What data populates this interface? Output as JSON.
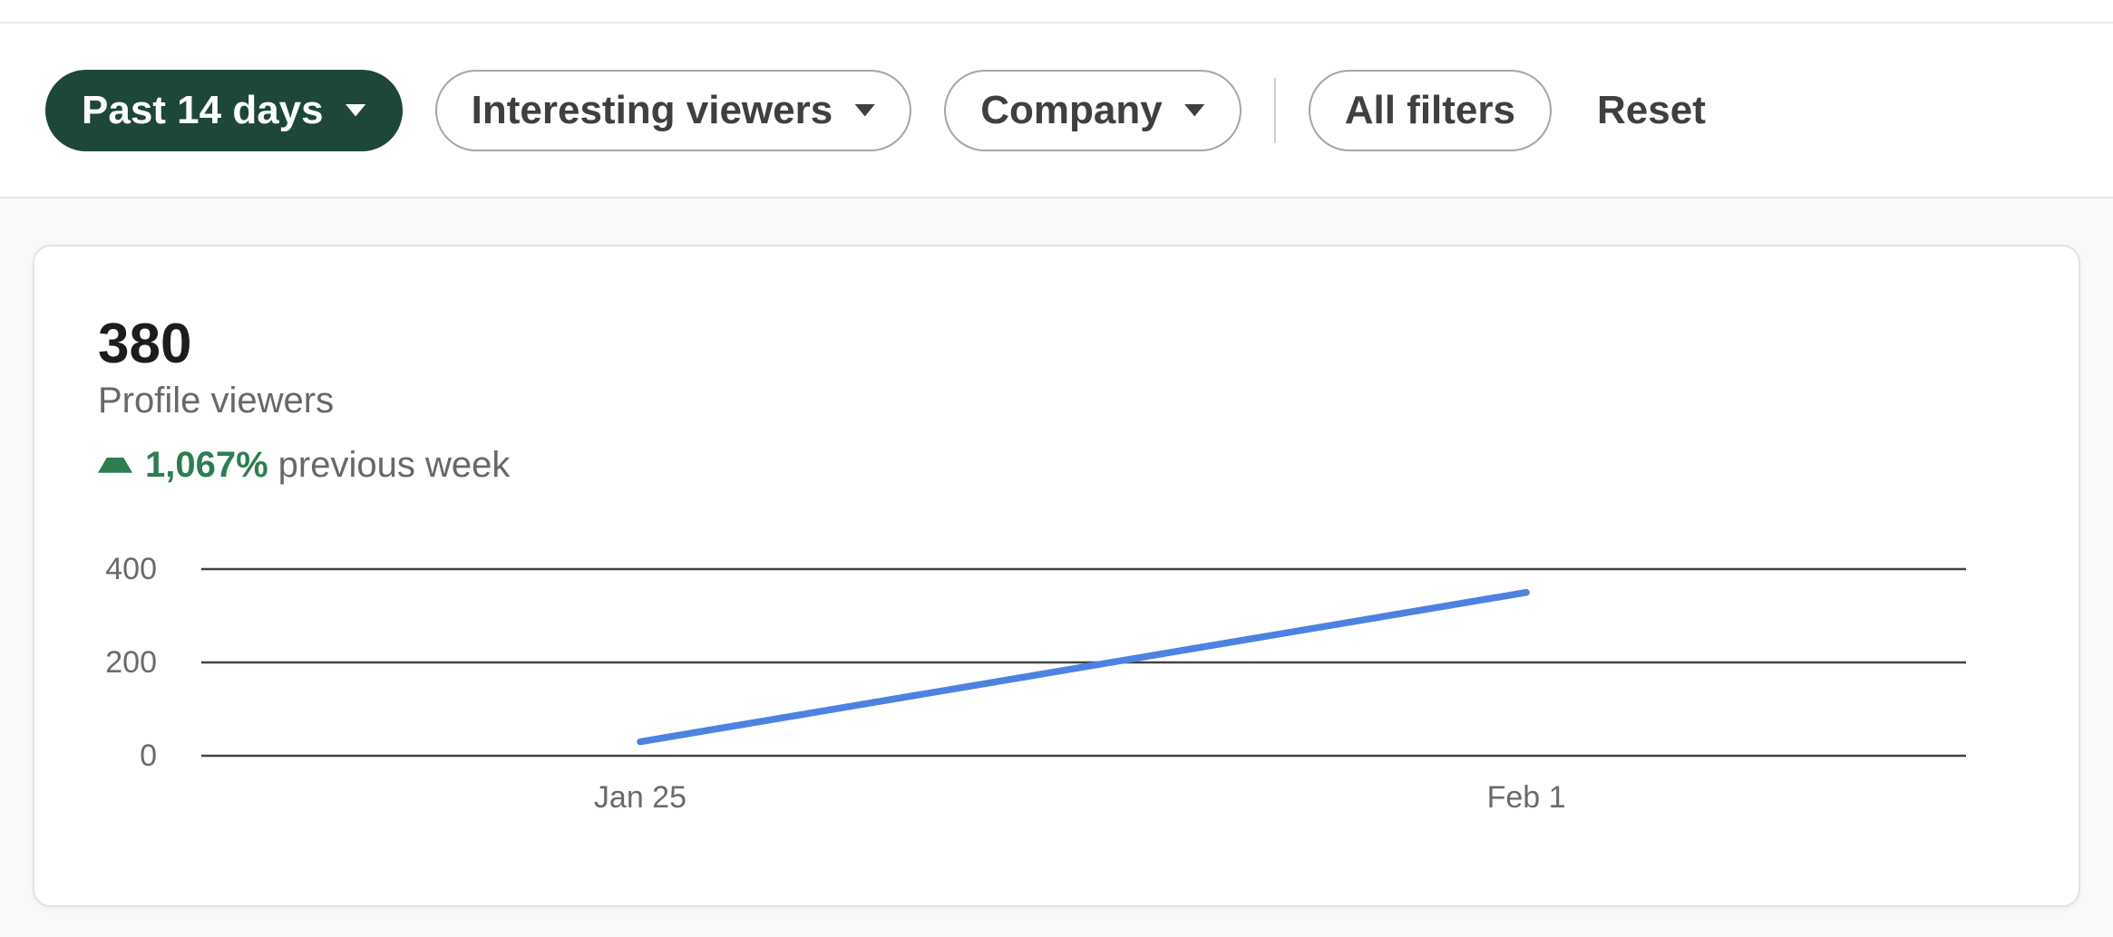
{
  "filter_bar": {
    "pills": [
      {
        "id": "date-range",
        "label": "Past 14 days",
        "selected": true,
        "has_caret": true
      },
      {
        "id": "viewer-type",
        "label": "Interesting viewers",
        "selected": false,
        "has_caret": true
      },
      {
        "id": "company",
        "label": "Company",
        "selected": false,
        "has_caret": true
      },
      {
        "id": "all-filters",
        "label": "All filters",
        "selected": false,
        "has_caret": false
      }
    ],
    "reset_label": "Reset"
  },
  "card": {
    "value": "380",
    "metric_label": "Profile viewers",
    "trend": {
      "direction": "up",
      "percent": "1,067%",
      "suffix": "previous week"
    }
  },
  "chart_data": {
    "type": "line",
    "title": "Profile viewers",
    "x": [
      "Jan 25",
      "Feb 1"
    ],
    "series": [
      {
        "name": "Profile viewers",
        "values": [
          30,
          350
        ]
      }
    ],
    "yticks": [
      0,
      200,
      400
    ],
    "ylim": [
      0,
      400
    ],
    "xlabel": "",
    "ylabel": "",
    "grid": true,
    "legend_position": "none",
    "line_color": "#4d82e2",
    "gridline_color": "#424242"
  },
  "colors": {
    "selected_pill_bg": "#1e4639",
    "selected_pill_text": "#ffffff",
    "pill_border": "#a6a6a6",
    "pill_text": "#3f3f3f",
    "success_green": "#2e7d52",
    "chart_line_blue": "#4d82e2",
    "page_background": "#f8f9fb",
    "card_background": "#ffffff"
  }
}
